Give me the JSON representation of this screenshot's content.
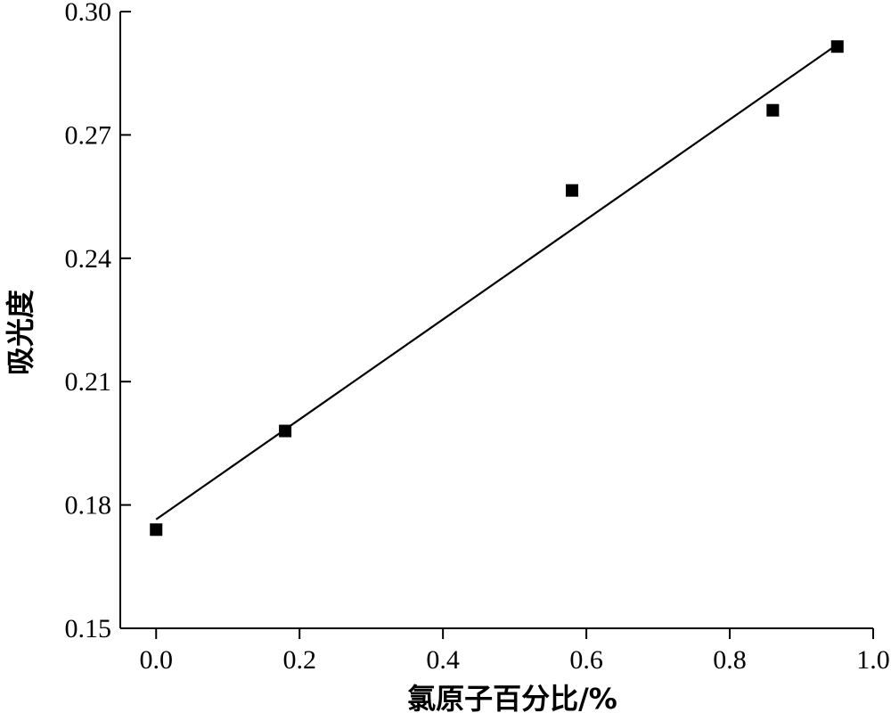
{
  "chart_data": {
    "type": "scatter",
    "xlabel": "氯原子百分比/%",
    "ylabel": "吸光度",
    "xlim": [
      -0.05,
      1.0
    ],
    "ylim": [
      0.15,
      0.3
    ],
    "xticks": [
      0.0,
      0.2,
      0.4,
      0.6,
      0.8,
      1.0
    ],
    "xtick_labels": [
      "0.0",
      "0.2",
      "0.4",
      "0.6",
      "0.8",
      "1.0"
    ],
    "yticks": [
      0.15,
      0.18,
      0.21,
      0.24,
      0.27,
      0.3
    ],
    "ytick_labels": [
      "0.15",
      "0.18",
      "0.21",
      "0.24",
      "0.27",
      "0.30"
    ],
    "grid": false,
    "legend": "none",
    "series": [
      {
        "marker": "square",
        "color": "#000000",
        "points": [
          {
            "x": 0.0,
            "y": 0.174
          },
          {
            "x": 0.18,
            "y": 0.198
          },
          {
            "x": 0.58,
            "y": 0.2565
          },
          {
            "x": 0.86,
            "y": 0.276
          },
          {
            "x": 0.95,
            "y": 0.2915
          }
        ]
      }
    ],
    "fit_line": {
      "x": [
        0.0,
        0.95
      ],
      "y": [
        0.1765,
        0.292
      ],
      "color": "#000000"
    }
  }
}
